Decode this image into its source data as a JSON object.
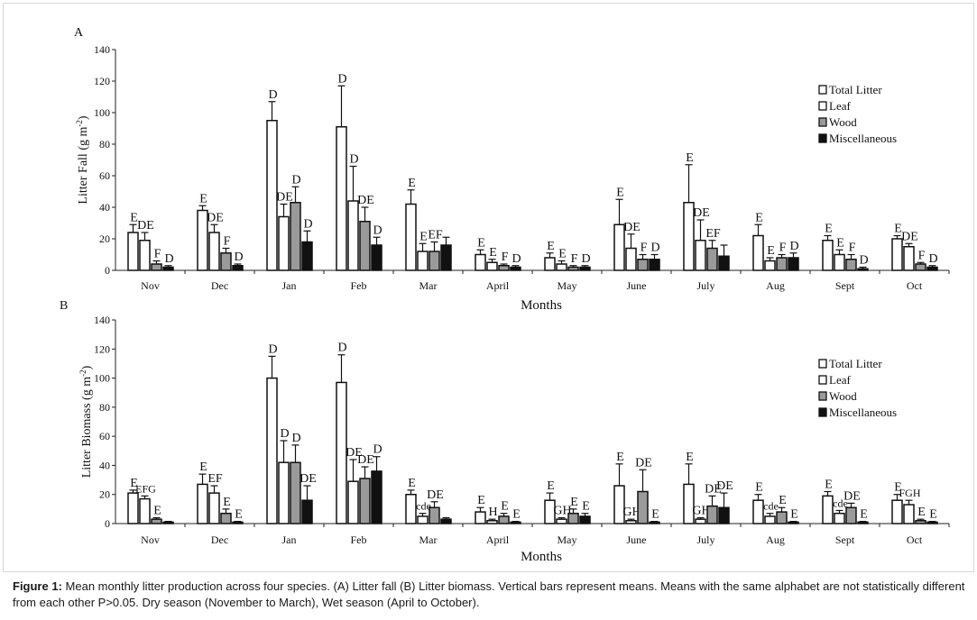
{
  "caption": {
    "label": "Figure 1:",
    "text": "Mean monthly litter production across four species. (A) Litter fall (B) Litter biomass. Vertical bars represent means. Means with the same alphabet are not statistically different from each other P>0.05. Dry season (November to March), Wet season (April to October)."
  },
  "chart_data": [
    {
      "type": "bar",
      "panel_label": "A",
      "xlabel": "Months",
      "ylabel": "Litter Fall (g m",
      "ylabel_sup": "-2",
      "ylabel_close": ")",
      "ylim": [
        0,
        140
      ],
      "yticks": [
        0,
        20,
        40,
        60,
        80,
        100,
        120,
        140
      ],
      "grid": false,
      "legend_position": "right",
      "categories": [
        "Nov",
        "Dec",
        "Jan",
        "Feb",
        "Mar",
        "April",
        "May",
        "June",
        "July",
        "Aug",
        "Sept",
        "Oct"
      ],
      "series": [
        {
          "name": "Total Litter",
          "style": "white",
          "values": [
            24,
            38,
            95,
            91,
            42,
            10,
            8,
            29,
            43,
            22,
            19,
            20
          ],
          "errors": [
            5,
            3,
            12,
            26,
            9,
            3,
            3,
            16,
            24,
            7,
            3,
            2
          ],
          "letters": [
            "E",
            "E",
            "D",
            "D",
            "E",
            "E",
            "E",
            "E",
            "E",
            "E",
            "E",
            "E"
          ]
        },
        {
          "name": "Leaf",
          "style": "white",
          "values": [
            19,
            24,
            34,
            44,
            12,
            5,
            4,
            14,
            19,
            6,
            10,
            15
          ],
          "errors": [
            5,
            5,
            8,
            22,
            5,
            2,
            2,
            9,
            13,
            2,
            3,
            2
          ],
          "letters": [
            "DE",
            "DE",
            "DE",
            "D",
            "E",
            "E",
            "E",
            "DE",
            "DE",
            "E",
            "E",
            "DE"
          ]
        },
        {
          "name": "Wood",
          "style": "gray",
          "values": [
            4,
            11,
            43,
            31,
            12,
            3,
            2,
            7,
            14,
            8,
            7,
            4
          ],
          "errors": [
            2,
            3,
            10,
            9,
            6,
            1,
            1,
            3,
            5,
            2,
            3,
            1
          ],
          "letters": [
            "F",
            "F",
            "D",
            "DE",
            "EF",
            "F",
            "F",
            "F",
            "EF",
            "F",
            "F",
            "F"
          ]
        },
        {
          "name": "Miscellaneous",
          "style": "black",
          "values": [
            2,
            3,
            18,
            16,
            16,
            2,
            2,
            7,
            9,
            8,
            1,
            2
          ],
          "errors": [
            1,
            1,
            7,
            5,
            5,
            1,
            1,
            3,
            7,
            3,
            1,
            1
          ],
          "letters": [
            "D",
            "D",
            "D",
            "D",
            "",
            "D",
            "D",
            "D",
            "",
            "D",
            "D",
            "D"
          ]
        }
      ]
    },
    {
      "type": "bar",
      "panel_label": "B",
      "xlabel": "Months",
      "ylabel": "Litter Biomass (g m",
      "ylabel_sup": "-2",
      "ylabel_close": ")",
      "ylim": [
        0,
        140
      ],
      "yticks": [
        0,
        20,
        40,
        60,
        80,
        100,
        120,
        140
      ],
      "grid": false,
      "legend_position": "right",
      "categories": [
        "Nov",
        "Dec",
        "Jan",
        "Feb",
        "Mar",
        "April",
        "May",
        "June",
        "July",
        "Aug",
        "Sept",
        "Oct"
      ],
      "series": [
        {
          "name": "Total Litter",
          "style": "white",
          "values": [
            21,
            27,
            100,
            97,
            20,
            8,
            16,
            26,
            27,
            16,
            19,
            16
          ],
          "errors": [
            2,
            7,
            15,
            19,
            3,
            3,
            5,
            15,
            14,
            4,
            3,
            4
          ],
          "letters": [
            "E",
            "E",
            "D",
            "D",
            "E",
            "E",
            "E",
            "E",
            "E",
            "E",
            "E",
            "E"
          ]
        },
        {
          "name": "Leaf",
          "style": "white",
          "values": [
            17,
            21,
            42,
            29,
            5,
            2,
            3,
            2,
            3,
            5,
            7,
            13
          ],
          "errors": [
            2,
            5,
            15,
            15,
            2,
            1,
            1,
            1,
            1,
            2,
            2,
            3
          ],
          "letters": [
            "EFG",
            "EF",
            "D",
            "DE",
            "cde",
            "H",
            "GH",
            "GH",
            "GH",
            "cde",
            "cde",
            "FGH"
          ]
        },
        {
          "name": "Wood",
          "style": "gray",
          "values": [
            3,
            7,
            42,
            31,
            11,
            5,
            7,
            22,
            12,
            8,
            11,
            2
          ],
          "errors": [
            1,
            3,
            12,
            8,
            4,
            2,
            3,
            15,
            7,
            3,
            3,
            1
          ],
          "letters": [
            "E",
            "E",
            "D",
            "DE",
            "DE",
            "E",
            "E",
            "DE",
            "DE",
            "E",
            "DE",
            "E"
          ]
        },
        {
          "name": "Miscellaneous",
          "style": "black",
          "values": [
            1,
            1,
            16,
            36,
            3,
            1,
            5,
            1,
            11,
            1,
            1,
            1
          ],
          "errors": [
            0.5,
            0.5,
            10,
            10,
            1,
            0.5,
            2,
            0.5,
            10,
            0.5,
            0.5,
            0.5
          ],
          "letters": [
            "",
            "E",
            "DE",
            "D",
            "",
            "E",
            "E",
            "E",
            "DE",
            "E",
            "E",
            "E"
          ]
        }
      ]
    }
  ]
}
